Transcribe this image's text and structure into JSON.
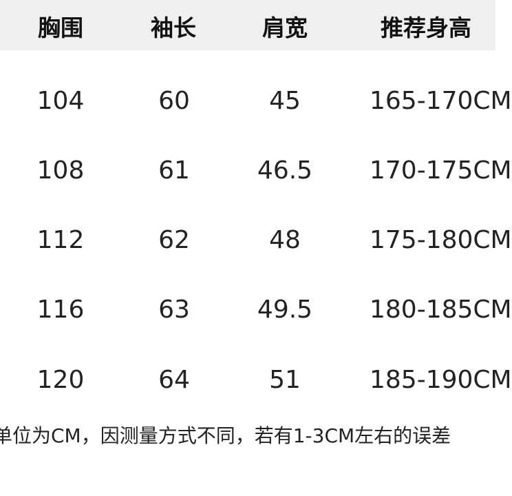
{
  "headers": [
    "胸围",
    "袖长",
    "肩宽",
    "推荐身高"
  ],
  "rows": [
    [
      "104",
      "60",
      "45",
      "165-170CM"
    ],
    [
      "108",
      "61",
      "46.5",
      "170-175CM"
    ],
    [
      "112",
      "62",
      "48",
      "175-180CM"
    ],
    [
      "116",
      "63",
      "49.5",
      "180-185CM"
    ],
    [
      "120",
      "64",
      "51",
      "185-190CM"
    ]
  ],
  "note": "单位为CM，因测量方式不同，若有1-3CM左右的误差"
}
